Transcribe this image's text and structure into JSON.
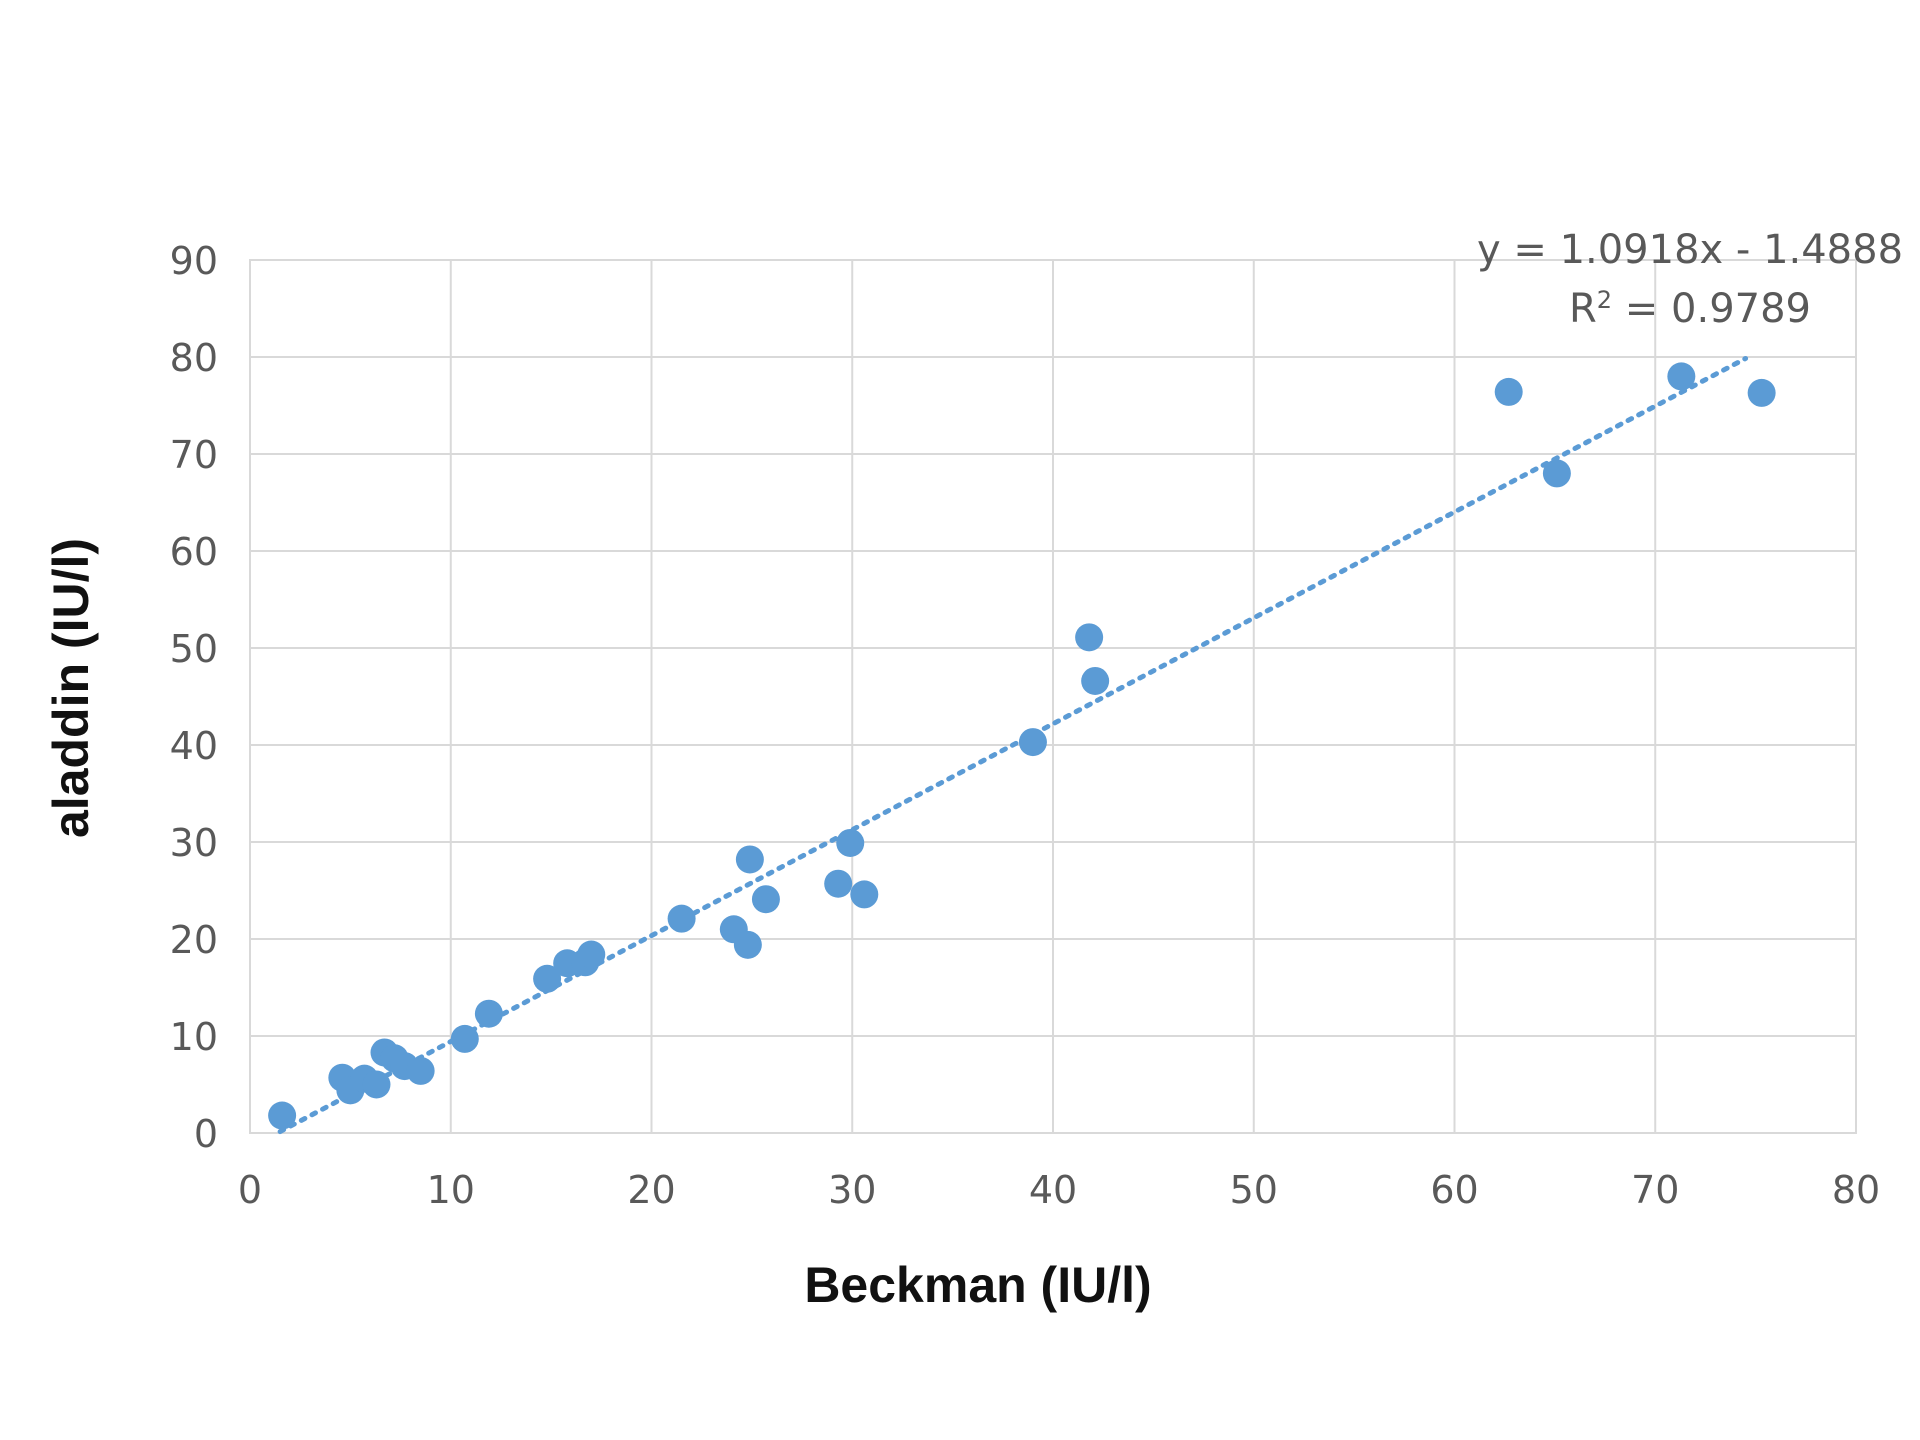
{
  "chart_data": {
    "type": "scatter",
    "xlabel": "Beckman (IU/l)",
    "ylabel": "aladdin (IU/l)",
    "xlim": [
      0,
      80
    ],
    "ylim": [
      0,
      90
    ],
    "x_ticks": [
      "0",
      "10",
      "20",
      "30",
      "40",
      "50",
      "60",
      "70",
      "80"
    ],
    "y_ticks": [
      "0",
      "10",
      "20",
      "30",
      "40",
      "50",
      "60",
      "70",
      "80",
      "90"
    ],
    "grid": true,
    "legend": "none",
    "marker_color": "#5b9bd5",
    "trendline": {
      "equation": "y = 1.0918x - 1.4888",
      "r2_prefix": "R",
      "r2_sup": "2",
      "r2_suffix": " = 0.9789",
      "slope": 1.0918,
      "intercept": -1.4888,
      "x_range": [
        1.5,
        74.5
      ],
      "style": "dotted",
      "color": "#5b9bd5"
    },
    "points": [
      {
        "x": 1.6,
        "y": 1.8
      },
      {
        "x": 4.6,
        "y": 5.7
      },
      {
        "x": 5.0,
        "y": 4.4
      },
      {
        "x": 5.7,
        "y": 5.6
      },
      {
        "x": 6.3,
        "y": 5.0
      },
      {
        "x": 6.7,
        "y": 8.3
      },
      {
        "x": 7.2,
        "y": 7.7
      },
      {
        "x": 7.7,
        "y": 6.9
      },
      {
        "x": 8.5,
        "y": 6.4
      },
      {
        "x": 10.7,
        "y": 9.7
      },
      {
        "x": 11.9,
        "y": 12.3
      },
      {
        "x": 14.8,
        "y": 15.9
      },
      {
        "x": 15.8,
        "y": 17.5
      },
      {
        "x": 16.7,
        "y": 17.6
      },
      {
        "x": 17.0,
        "y": 18.4
      },
      {
        "x": 21.5,
        "y": 22.1
      },
      {
        "x": 24.1,
        "y": 21.0
      },
      {
        "x": 24.8,
        "y": 19.4
      },
      {
        "x": 24.9,
        "y": 28.2
      },
      {
        "x": 25.7,
        "y": 24.1
      },
      {
        "x": 29.3,
        "y": 25.7
      },
      {
        "x": 29.9,
        "y": 29.9
      },
      {
        "x": 30.6,
        "y": 24.6
      },
      {
        "x": 39.0,
        "y": 40.3
      },
      {
        "x": 41.8,
        "y": 51.1
      },
      {
        "x": 42.1,
        "y": 46.6
      },
      {
        "x": 62.7,
        "y": 76.4
      },
      {
        "x": 65.1,
        "y": 68.0
      },
      {
        "x": 71.3,
        "y": 78.0
      },
      {
        "x": 75.3,
        "y": 76.3
      }
    ]
  }
}
